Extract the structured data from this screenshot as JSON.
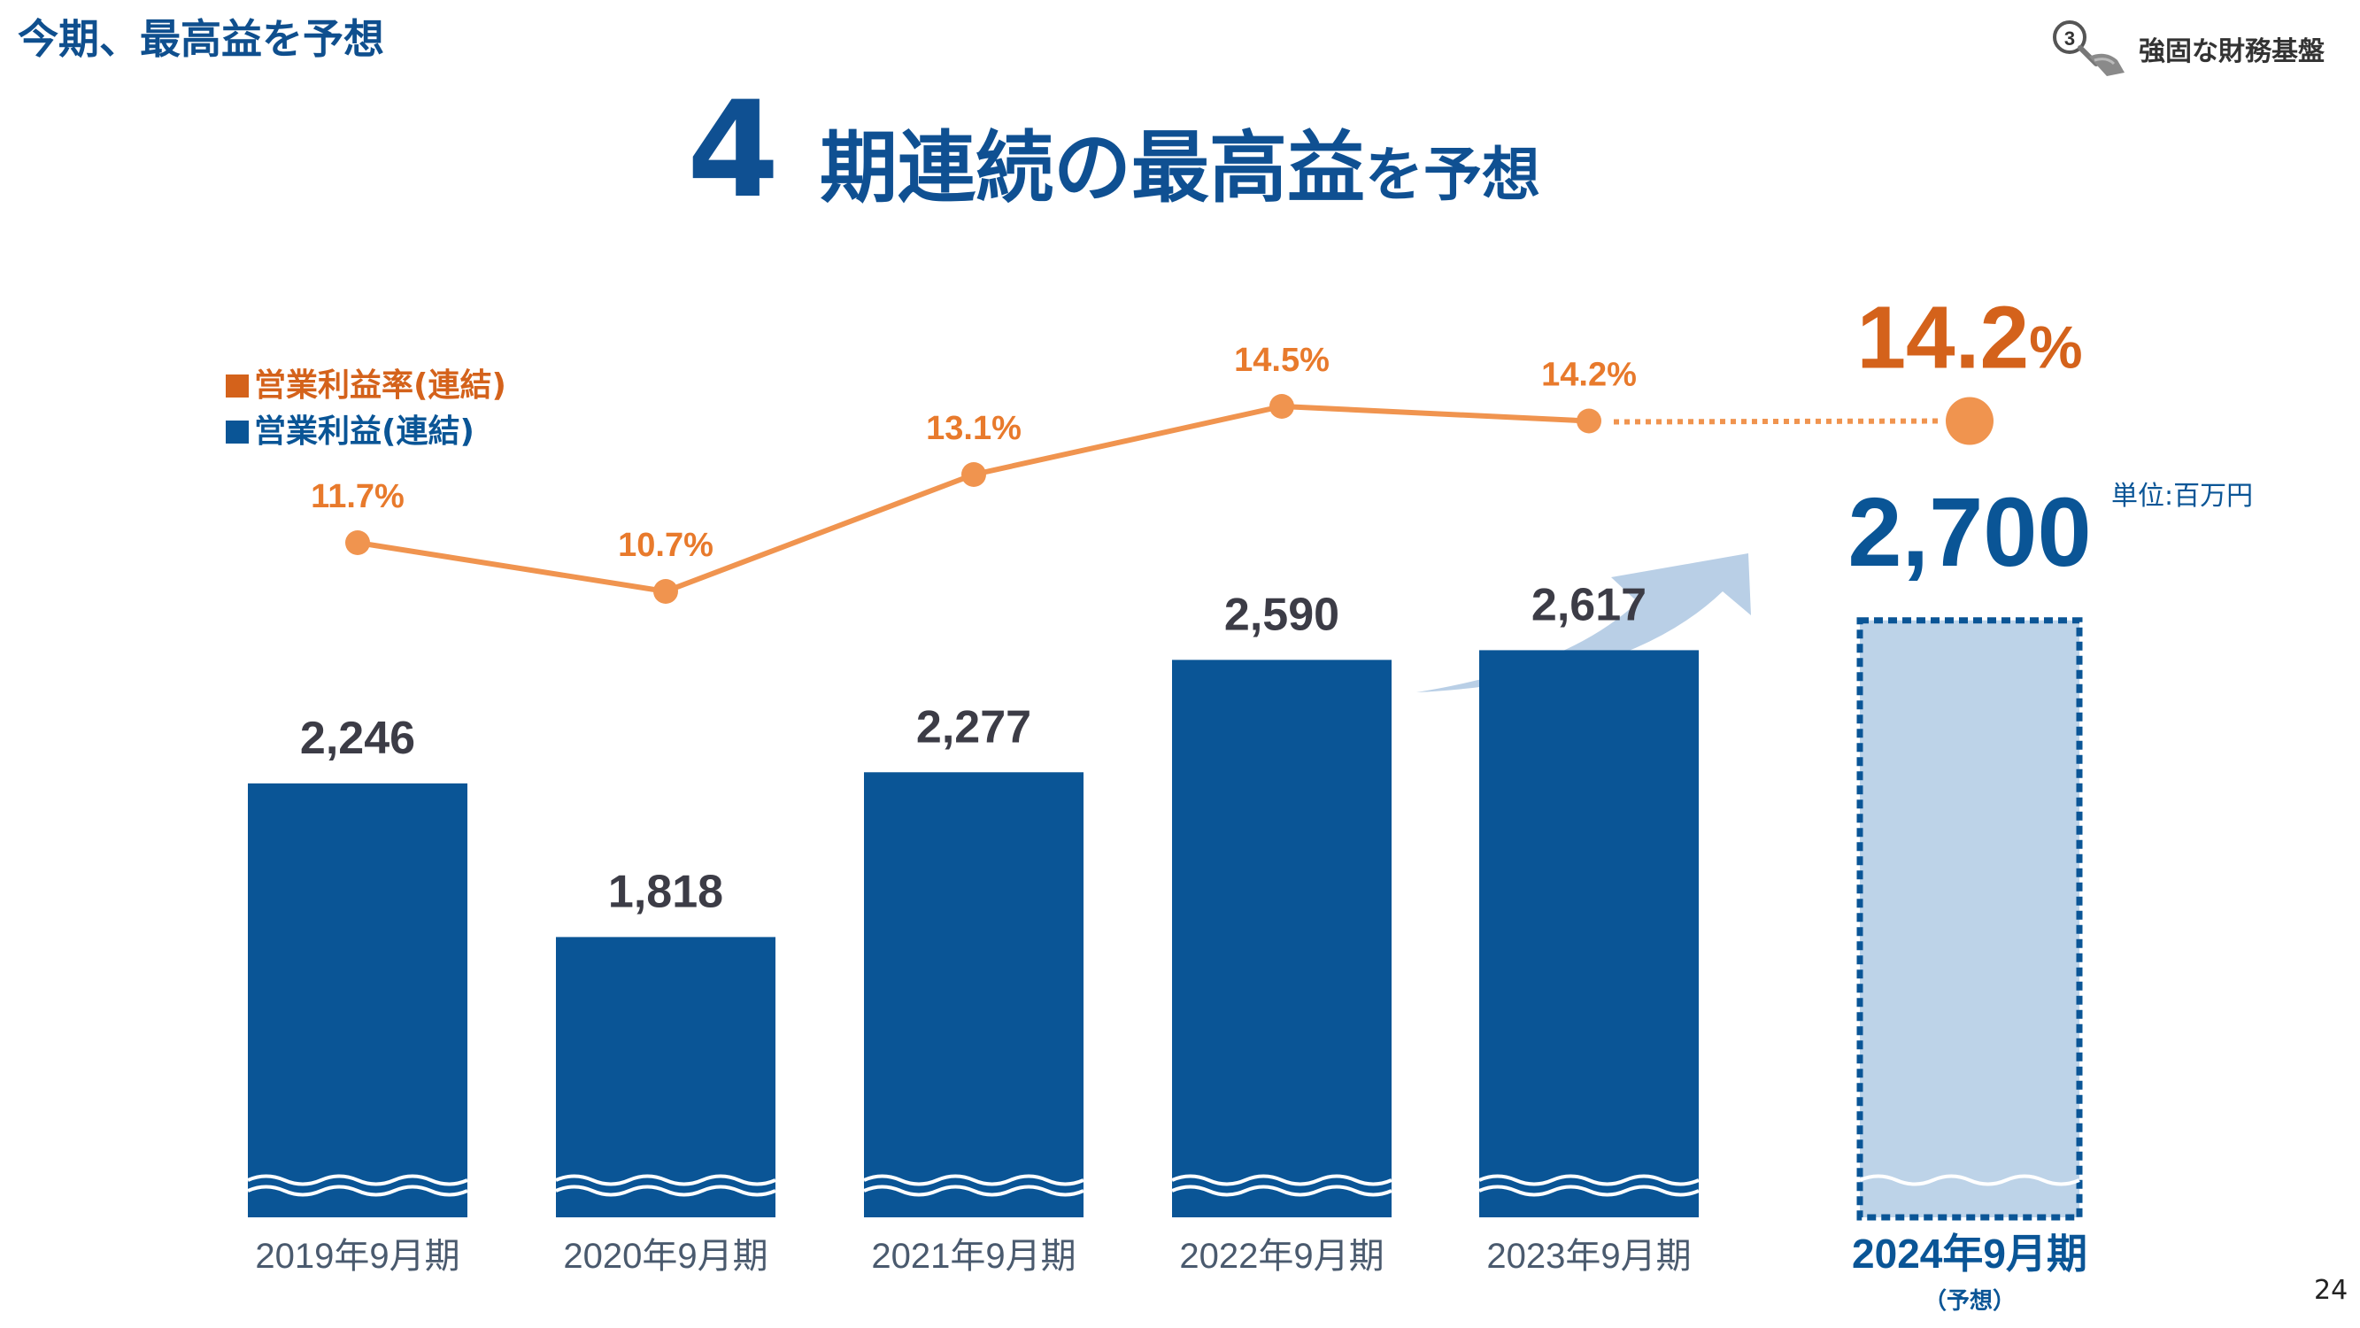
{
  "header": {
    "section_title": "今期、最高益を予想",
    "badge_number": "3",
    "badge_text": "強固な財務基盤",
    "badge_icon": "magnifier-hand-icon"
  },
  "headline": {
    "number": "4",
    "text_large": "期連続の最高益",
    "text_small": "を予想"
  },
  "colors": {
    "primary": "#0a5596",
    "accent": "#e87a2c",
    "accent_dark": "#d4621b",
    "line": "#f0944f",
    "forecast_fill": "#bdd3e8",
    "label": "#3c3c46",
    "axis_label": "#4a5a6e",
    "arrow": "#b9cfe6"
  },
  "unit_label": "単位:百万円",
  "page_number": "24",
  "chart_data": {
    "type": "bar",
    "categories": [
      "2019年9月期",
      "2020年9月期",
      "2021年9月期",
      "2022年9月期",
      "2023年9月期",
      "2024年9月期"
    ],
    "forecast_note": "（予想）",
    "series": [
      {
        "name": "営業利益(連結)",
        "type": "bar",
        "values": [
          2246,
          1818,
          2277,
          2590,
          2617,
          2700
        ],
        "labels": [
          "2,246",
          "1,818",
          "2,277",
          "2,590",
          "2,617",
          "2,700"
        ]
      },
      {
        "name": "営業利益率(連結)",
        "type": "line",
        "values": [
          11.7,
          10.7,
          13.1,
          14.5,
          14.2,
          14.2
        ],
        "labels": [
          "11.7%",
          "10.7%",
          "13.1%",
          "14.5%",
          "14.2%",
          "14.2"
        ]
      }
    ],
    "forecast_label_suffix": "%",
    "forecast_index": 5,
    "axis_break": true
  }
}
